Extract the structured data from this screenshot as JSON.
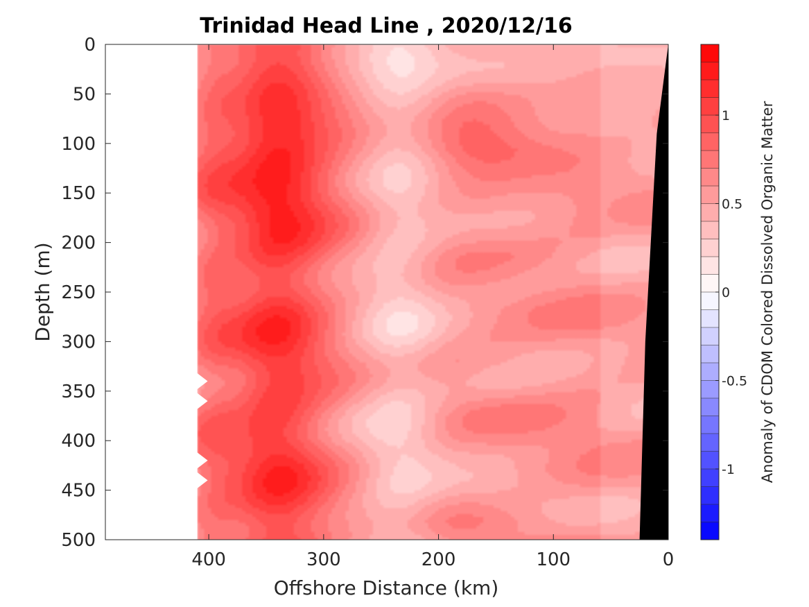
{
  "chart_data": {
    "type": "heatmap",
    "subtype": "filled-contour section",
    "title": "Trinidad Head Line , 2020/12/16",
    "xlabel": "Offshore Distance (km)",
    "ylabel": "Depth (m)",
    "xlim": [
      490,
      0
    ],
    "x_direction": "reversed",
    "ylim": [
      0,
      500
    ],
    "y_direction": "reversed (depth increases downward)",
    "x_ticks": [
      "400",
      "300",
      "200",
      "100",
      "0"
    ],
    "y_ticks": [
      "0",
      "50",
      "100",
      "150",
      "200",
      "250",
      "300",
      "350",
      "400",
      "450",
      "500"
    ],
    "colorbar": {
      "label": "Anomaly of CDOM Colored Dissolved Organic Matter",
      "range": [
        -1.4,
        1.4
      ],
      "levels": 28,
      "ticks": [
        "1",
        "0.5",
        "0",
        "-0.5",
        "-1"
      ],
      "color_low": "#0000ff",
      "color_mid": "#ffffff",
      "color_high": "#ff0000"
    },
    "data_extent_km": [
      0,
      410
    ],
    "bathymetry": {
      "color": "#000000",
      "boundary": [
        {
          "x": 0,
          "depth": 0
        },
        {
          "x": 10,
          "depth": 90
        },
        {
          "x": 20,
          "depth": 300
        },
        {
          "x": 25,
          "depth": 500
        }
      ]
    },
    "x_distance_km": [
      410,
      395,
      380,
      365,
      350,
      335,
      320,
      305,
      290,
      275,
      260,
      245,
      230,
      215,
      200,
      185,
      170,
      155,
      140,
      125,
      110,
      95,
      80,
      65,
      50,
      35,
      20,
      10
    ],
    "y_depth_m": [
      0,
      20,
      40,
      60,
      80,
      100,
      120,
      140,
      160,
      180,
      200,
      220,
      240,
      260,
      280,
      300,
      320,
      340,
      360,
      380,
      400,
      420,
      440,
      460,
      480,
      500
    ]
  }
}
